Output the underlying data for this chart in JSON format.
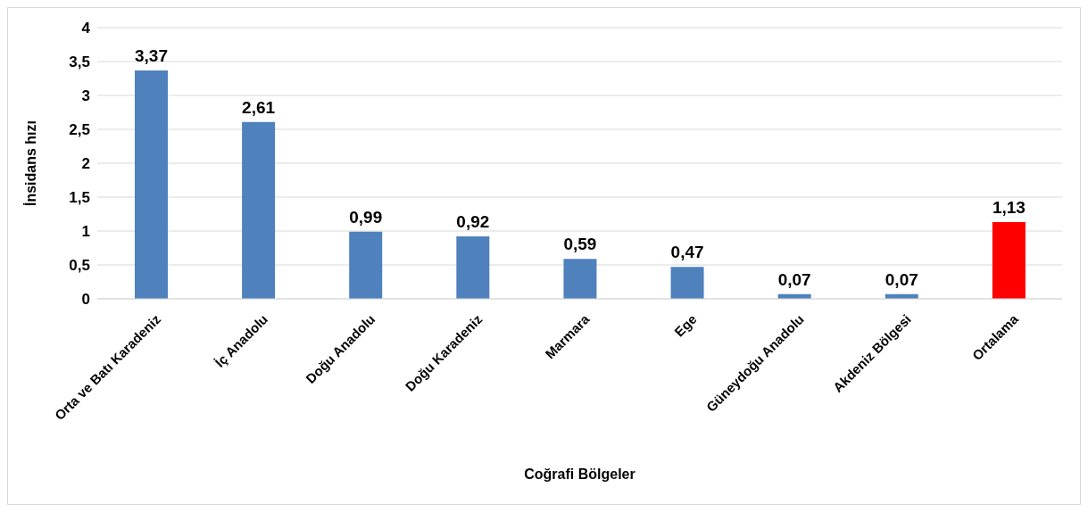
{
  "chart_data": {
    "type": "bar",
    "xlabel": "Coğrafi Bölgeler",
    "ylabel": "İnsidans hızı",
    "categories": [
      "Orta ve Batı Karadeniz",
      "İç Anadolu",
      "Doğu Anadolu",
      "Doğu Karadeniz",
      "Marmara",
      "Ege",
      "Güneydoğu Anadolu",
      "Akdeniz Bölgesi",
      "Ortalama"
    ],
    "values": [
      3.37,
      2.61,
      0.99,
      0.92,
      0.59,
      0.47,
      0.07,
      0.07,
      1.13
    ],
    "value_labels": [
      "3,37",
      "2,61",
      "0,99",
      "0,92",
      "0,59",
      "0,47",
      "0,07",
      "0,07",
      "1,13"
    ],
    "colors": [
      "#4f81bd",
      "#4f81bd",
      "#4f81bd",
      "#4f81bd",
      "#4f81bd",
      "#4f81bd",
      "#4f81bd",
      "#4f81bd",
      "#ff0000"
    ],
    "ylim": [
      0,
      4
    ],
    "yticks": [
      0,
      {
        "value": 0.5,
        "label": "0,5"
      },
      1,
      {
        "value": 1.5,
        "label": "1,5"
      },
      2,
      {
        "value": 2.5,
        "label": "2,5"
      },
      3,
      {
        "value": 3.5,
        "label": "3,5"
      },
      4
    ],
    "grid": "y"
  }
}
